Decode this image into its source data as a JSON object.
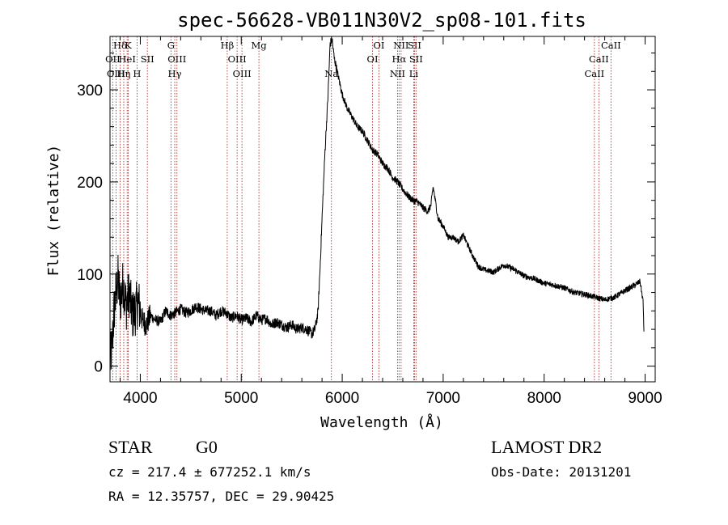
{
  "chart_data": {
    "type": "line",
    "title": "spec-56628-VB011N30V2_sp08-101.fits",
    "xlabel": "Wavelength (Å)",
    "ylabel": "Flux (relative)",
    "xlim": [
      3700,
      9100
    ],
    "ylim": [
      -17,
      358
    ],
    "xticks": [
      4000,
      5000,
      6000,
      7000,
      8000,
      9000
    ],
    "yticks": [
      0,
      100,
      200,
      300
    ],
    "grid": false,
    "series": [
      {
        "x": [
          3700,
          3720,
          3740,
          3760,
          3780,
          3800,
          3830,
          3860,
          3890,
          3920,
          3950,
          3980,
          4020,
          4060,
          4100,
          4150,
          4200,
          4250,
          4300,
          4350,
          4400,
          4450,
          4500,
          4550,
          4600,
          4650,
          4700,
          4750,
          4800,
          4850,
          4900,
          4950,
          5000,
          5050,
          5100,
          5150,
          5200,
          5250,
          5300,
          5350,
          5400,
          5450,
          5500,
          5550,
          5600,
          5650,
          5700,
          5730,
          5760,
          5780,
          5800,
          5830,
          5860,
          5880,
          5900,
          5920,
          5950,
          6000,
          6050,
          6100,
          6150,
          6200,
          6250,
          6300,
          6350,
          6400,
          6450,
          6500,
          6550,
          6600,
          6650,
          6700,
          6750,
          6800,
          6850,
          6880,
          6900,
          6950,
          7000,
          7050,
          7100,
          7150,
          7200,
          7250,
          7300,
          7350,
          7400,
          7500,
          7600,
          7700,
          7800,
          7900,
          8000,
          8100,
          8200,
          8300,
          8400,
          8500,
          8600,
          8700,
          8800,
          8900,
          8950,
          8980,
          8990
        ],
        "values": [
          5,
          20,
          60,
          80,
          95,
          70,
          90,
          65,
          80,
          55,
          60,
          70,
          50,
          45,
          55,
          50,
          48,
          60,
          55,
          58,
          62,
          58,
          60,
          65,
          62,
          60,
          60,
          55,
          60,
          58,
          52,
          55,
          50,
          52,
          48,
          55,
          50,
          52,
          45,
          48,
          45,
          42,
          45,
          40,
          42,
          40,
          35,
          40,
          58,
          105,
          160,
          235,
          295,
          350,
          355,
          335,
          320,
          295,
          280,
          270,
          260,
          255,
          245,
          235,
          230,
          220,
          215,
          205,
          200,
          192,
          185,
          180,
          178,
          172,
          168,
          175,
          195,
          160,
          152,
          140,
          140,
          135,
          142,
          130,
          118,
          108,
          105,
          102,
          110,
          105,
          98,
          95,
          90,
          88,
          85,
          80,
          78,
          75,
          72,
          75,
          82,
          88,
          92,
          70,
          35
        ]
      }
    ],
    "lines": [
      {
        "label": "Hδ",
        "x": 3800,
        "row": 0
      },
      {
        "label": "OII",
        "x": 3727,
        "row": 1
      },
      {
        "label": "OIII",
        "x": 3760,
        "row": 2
      },
      {
        "label": "K",
        "x": 3880,
        "row": 0
      },
      {
        "label": "HeI",
        "x": 3870,
        "row": 1
      },
      {
        "label": "Hη",
        "x": 3836,
        "row": 2
      },
      {
        "label": "SII",
        "x": 4070,
        "row": 1
      },
      {
        "label": "H",
        "x": 3968,
        "row": 2
      },
      {
        "label": "G",
        "x": 4304,
        "row": 0
      },
      {
        "label": "OIII",
        "x": 4363,
        "row": 1
      },
      {
        "label": "Hγ",
        "x": 4341,
        "row": 2
      },
      {
        "label": "Hβ",
        "x": 4861,
        "row": 0
      },
      {
        "label": "OIII",
        "x": 4959,
        "row": 1
      },
      {
        "label": "OIII",
        "x": 5007,
        "row": 2
      },
      {
        "label": "Mg",
        "x": 5175,
        "row": 0
      },
      {
        "label": "Na",
        "x": 5893,
        "row": 2
      },
      {
        "label": "OI",
        "x": 6364,
        "row": 0
      },
      {
        "label": "OI",
        "x": 6300,
        "row": 1
      },
      {
        "label": "NII",
        "x": 6583,
        "row": 0
      },
      {
        "label": "SII",
        "x": 6716,
        "row": 0
      },
      {
        "label": "Hα",
        "x": 6563,
        "row": 1
      },
      {
        "label": "SII",
        "x": 6731,
        "row": 1
      },
      {
        "label": "NII",
        "x": 6548,
        "row": 2
      },
      {
        "label": "Li",
        "x": 6708,
        "row": 2
      },
      {
        "label": "CaII",
        "x": 8662,
        "row": 0
      },
      {
        "label": "CaII",
        "x": 8542,
        "row": 1
      },
      {
        "label": "CaII",
        "x": 8498,
        "row": 2
      }
    ]
  },
  "info": {
    "class": "STAR",
    "subclass": "G0",
    "survey": "LAMOST DR2",
    "cz": "cz = 217.4 ± 677252.1 km/s",
    "obs_date": "Obs-Date: 20131201",
    "coords": "RA =  12.35757, DEC =  29.90425"
  },
  "colors": {
    "axis": "#000000",
    "spectrum": "#000000",
    "lines": "#b03030"
  }
}
